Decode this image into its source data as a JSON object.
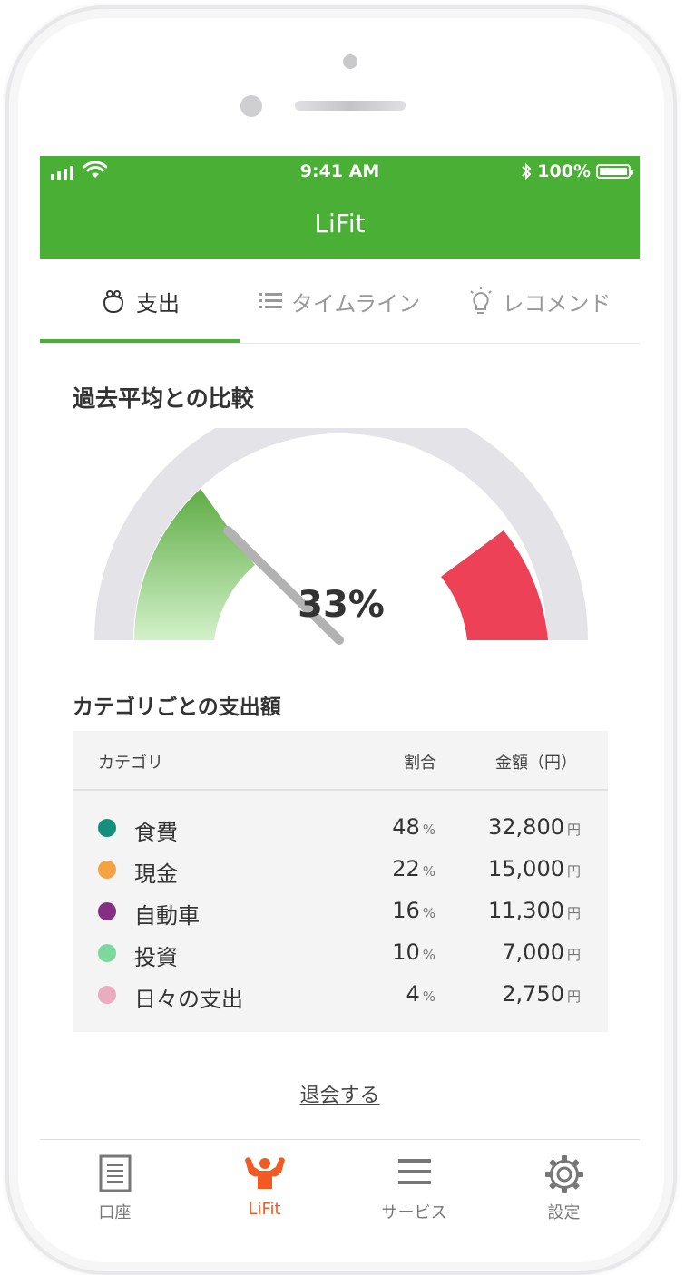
{
  "status": {
    "time": "9:41 AM",
    "battery": "100%"
  },
  "app": {
    "title": "LiFit"
  },
  "tabs": [
    {
      "label": "支出",
      "icon": "purse-icon"
    },
    {
      "label": "タイムライン",
      "icon": "list-icon"
    },
    {
      "label": "レコメンド",
      "icon": "lightbulb-icon"
    }
  ],
  "comparison": {
    "title": "過去平均との比較",
    "value": "33%",
    "fraction": 0.33
  },
  "spending": {
    "title": "カテゴリごとの支出額",
    "headers": {
      "category": "カテゴリ",
      "ratio": "割合",
      "amount": "金額（円）"
    },
    "rows": [
      {
        "category": "食費",
        "ratio": "48",
        "amount": "32,800",
        "color": "#138f7c"
      },
      {
        "category": "現金",
        "ratio": "22",
        "amount": "15,000",
        "color": "#f5a243"
      },
      {
        "category": "自動車",
        "ratio": "16",
        "amount": "11,300",
        "color": "#852f84"
      },
      {
        "category": "投資",
        "ratio": "10",
        "amount": "7,000",
        "color": "#7dd89e"
      },
      {
        "category": "日々の支出",
        "ratio": "4",
        "amount": "2,750",
        "color": "#eaacbf"
      }
    ],
    "percent_unit": "%",
    "yen_unit": "円"
  },
  "withdraw_label": "退会する",
  "nav": [
    {
      "label": "口座",
      "icon": "document-icon"
    },
    {
      "label": "LiFit",
      "icon": "muscle-icon"
    },
    {
      "label": "サービス",
      "icon": "menu-icon"
    },
    {
      "label": "設定",
      "icon": "gear-icon"
    }
  ],
  "colors": {
    "brand": "#4ab035",
    "accent": "#f15a22",
    "gauge_red": "#ec4157",
    "gauge_track": "#e3e3e8"
  }
}
